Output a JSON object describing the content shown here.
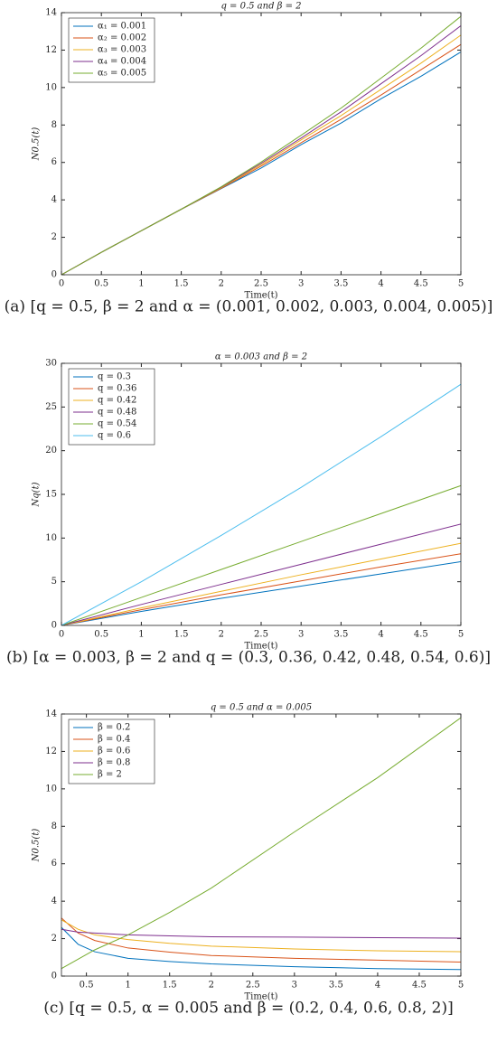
{
  "chart_data": [
    {
      "type": "line",
      "title": "q = 0.5 and β = 2",
      "x_label": "Time(t)",
      "y_label": "N0.5(t)",
      "caption": "(a) [q = 0.5,  β = 2 and α = (0.001, 0.002, 0.003, 0.004, 0.005)]",
      "x": [
        0,
        0.5,
        1,
        1.5,
        2,
        2.5,
        3,
        3.5,
        4,
        4.5,
        5
      ],
      "xlim": [
        0,
        5
      ],
      "ylim": [
        0,
        14
      ],
      "xticks": [
        0,
        0.5,
        1,
        1.5,
        2,
        2.5,
        3,
        3.5,
        4,
        4.5,
        5
      ],
      "yticks": [
        0,
        2,
        4,
        6,
        8,
        10,
        12,
        14
      ],
      "legend": "upper left",
      "series": [
        {
          "name": "α₁ = 0.001",
          "color": "#0072bd",
          "values": [
            0,
            1.2,
            2.35,
            3.5,
            4.6,
            5.7,
            6.95,
            8.1,
            9.4,
            10.6,
            11.9
          ]
        },
        {
          "name": "α₂ = 0.002",
          "color": "#d95319",
          "values": [
            0,
            1.2,
            2.35,
            3.5,
            4.62,
            5.8,
            7.05,
            8.3,
            9.6,
            10.95,
            12.3
          ]
        },
        {
          "name": "α₃ = 0.003",
          "color": "#edb120",
          "values": [
            0,
            1.2,
            2.35,
            3.5,
            4.65,
            5.88,
            7.2,
            8.5,
            9.9,
            11.3,
            12.8
          ]
        },
        {
          "name": "α₄ = 0.004",
          "color": "#7e2f8e",
          "values": [
            0,
            1.2,
            2.35,
            3.5,
            4.68,
            5.95,
            7.3,
            8.7,
            10.2,
            11.7,
            13.3
          ]
        },
        {
          "name": "α₅ = 0.005",
          "color": "#77ac30",
          "values": [
            0,
            1.2,
            2.35,
            3.5,
            4.7,
            6.02,
            7.45,
            8.9,
            10.5,
            12.1,
            13.8
          ]
        }
      ]
    },
    {
      "type": "line",
      "title": "α = 0.003 and β = 2",
      "x_label": "Time(t)",
      "y_label": "Nq(t)",
      "caption": "(b) [α = 0.003,  β = 2 and q = (0.3, 0.36, 0.42, 0.48, 0.54, 0.6)]",
      "x": [
        0,
        1,
        2,
        3,
        4,
        5
      ],
      "xlim": [
        0,
        5
      ],
      "ylim": [
        0,
        30
      ],
      "xticks": [
        0,
        0.5,
        1,
        1.5,
        2,
        2.5,
        3,
        3.5,
        4,
        4.5,
        5
      ],
      "yticks": [
        0,
        5,
        10,
        15,
        20,
        25,
        30
      ],
      "legend": "upper left",
      "series": [
        {
          "name": "q = 0.3",
          "color": "#0072bd",
          "values": [
            0,
            1.6,
            3.1,
            4.5,
            5.9,
            7.3
          ]
        },
        {
          "name": "q = 0.36",
          "color": "#d95319",
          "values": [
            0,
            1.8,
            3.5,
            5.1,
            6.7,
            8.2
          ]
        },
        {
          "name": "q = 0.42",
          "color": "#edb120",
          "values": [
            0,
            2.0,
            3.9,
            5.8,
            7.6,
            9.4
          ]
        },
        {
          "name": "q = 0.48",
          "color": "#7e2f8e",
          "values": [
            0,
            2.4,
            4.7,
            7.0,
            9.3,
            11.6
          ]
        },
        {
          "name": "q = 0.54",
          "color": "#77ac30",
          "values": [
            0,
            3.2,
            6.4,
            9.6,
            12.8,
            16.0
          ]
        },
        {
          "name": "q = 0.6",
          "color": "#4dbeee",
          "values": [
            0,
            5.0,
            10.3,
            15.8,
            21.6,
            27.6
          ]
        }
      ]
    },
    {
      "type": "line",
      "title": "q = 0.5 and α = 0.005",
      "x_label": "Time(t)",
      "y_label": "N0.5(t)",
      "caption": "(c) [q = 0.5,  α = 0.005 and β = (0.2, 0.4, 0.6, 0.8, 2)]",
      "x": [
        0.2,
        0.4,
        0.6,
        1,
        1.5,
        2,
        3,
        4,
        5
      ],
      "xlim": [
        0.2,
        5
      ],
      "ylim": [
        0,
        14
      ],
      "xticks": [
        0.5,
        1,
        1.5,
        2,
        2.5,
        3,
        3.5,
        4,
        4.5,
        5
      ],
      "yticks": [
        0,
        2,
        4,
        6,
        8,
        10,
        12,
        14
      ],
      "legend": "upper left",
      "series": [
        {
          "name": "β = 0.2",
          "color": "#0072bd",
          "values": [
            2.6,
            1.7,
            1.3,
            0.95,
            0.78,
            0.65,
            0.5,
            0.4,
            0.35
          ]
        },
        {
          "name": "β = 0.4",
          "color": "#d95319",
          "values": [
            3.1,
            2.3,
            1.9,
            1.5,
            1.28,
            1.1,
            0.95,
            0.85,
            0.75
          ]
        },
        {
          "name": "β = 0.6",
          "color": "#edb120",
          "values": [
            3.0,
            2.5,
            2.2,
            1.95,
            1.75,
            1.6,
            1.45,
            1.35,
            1.3
          ]
        },
        {
          "name": "β = 0.8",
          "color": "#7e2f8e",
          "values": [
            2.5,
            2.35,
            2.3,
            2.2,
            2.15,
            2.1,
            2.08,
            2.05,
            2.03
          ]
        },
        {
          "name": "β = 2",
          "color": "#77ac30",
          "values": [
            0.4,
            0.9,
            1.4,
            2.2,
            3.4,
            4.7,
            7.7,
            10.6,
            13.8
          ]
        }
      ]
    }
  ]
}
